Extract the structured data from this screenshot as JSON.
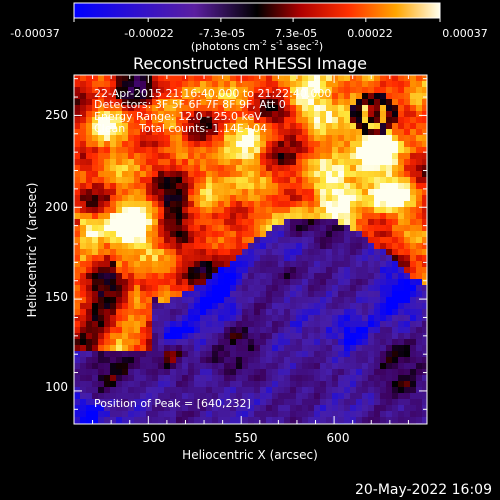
{
  "colorbar": {
    "ticks": [
      "-0.00037",
      "-0.00022",
      "-7.3e-05",
      "7.3e-05",
      "0.00022",
      "0.00037"
    ],
    "units_base": "(photons cm",
    "units_exp1": "-2",
    "units_mid": " s",
    "units_exp2": "-1",
    "units_mid2": " asec",
    "units_exp3": "-2",
    "units_end": ")",
    "range": [
      -0.00037,
      0.00037
    ]
  },
  "chart_data": {
    "type": "heatmap",
    "title": "Reconstructed RHESSI Image",
    "xlabel": "Heliocentric X (arcsec)",
    "ylabel": "Heliocentric Y (arcsec)",
    "xlim": [
      460,
      650
    ],
    "ylim": [
      82,
      272
    ],
    "x_ticks": [
      "500",
      "550",
      "600"
    ],
    "y_ticks": [
      "100",
      "150",
      "200",
      "250"
    ],
    "info_lines": [
      "22-Apr-2015 21:16:40.000 to 21:22:40.000",
      "Detectors: 3F 5F 6F 7F 8F 9F, Att 0",
      "Energy Range: 12.0 - 25.0 keV",
      "Clean    Total counts: 1.14E+04"
    ],
    "peak_label": "Position of Peak = [640,232]",
    "peak_position": [
      640,
      232
    ]
  },
  "footer": {
    "timestamp": "20-May-2022 16:09"
  },
  "colors": {
    "background": "#000000",
    "negative_low": "#0000ff",
    "negative_mid": "#5b1fa0",
    "zero": "#000000",
    "positive_mid": "#ff2000",
    "positive_high": "#ffff00",
    "peak": "#ffffff"
  }
}
